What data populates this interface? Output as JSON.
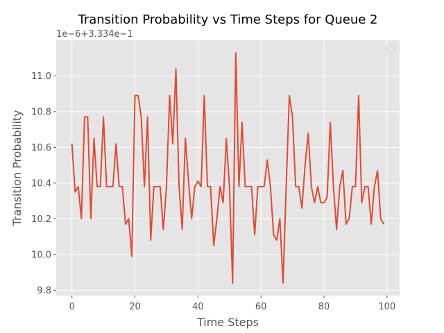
{
  "chart_data": {
    "type": "line",
    "title": "Transition Probability vs Time Steps for Queue 2",
    "xlabel": "Time Steps",
    "ylabel": "Transition Probability",
    "y_offset_text": "1e−6+3.334e−1",
    "xlim": [
      -5,
      104
    ],
    "ylim": [
      9.77,
      11.2
    ],
    "x_ticks": [
      0,
      20,
      40,
      60,
      80,
      100
    ],
    "x_tick_labels": [
      "0",
      "20",
      "40",
      "60",
      "80",
      "100"
    ],
    "y_ticks": [
      9.8,
      10.0,
      10.2,
      10.4,
      10.6,
      10.8,
      11.0
    ],
    "y_tick_labels": [
      "9.8",
      "10.0",
      "10.2",
      "10.4",
      "10.6",
      "10.8",
      "11.0"
    ],
    "grid": true,
    "legend": "top-right (empty)",
    "series": [
      {
        "color": "#e24a33",
        "x": [
          0,
          1,
          2,
          3,
          4,
          5,
          6,
          7,
          8,
          9,
          10,
          11,
          12,
          13,
          14,
          15,
          16,
          17,
          18,
          19,
          20,
          21,
          22,
          23,
          24,
          25,
          26,
          27,
          28,
          29,
          30,
          31,
          32,
          33,
          34,
          35,
          36,
          37,
          38,
          39,
          40,
          41,
          42,
          43,
          44,
          45,
          46,
          47,
          48,
          49,
          50,
          51,
          52,
          53,
          54,
          55,
          56,
          57,
          58,
          59,
          60,
          61,
          62,
          63,
          64,
          65,
          66,
          67,
          68,
          69,
          70,
          71,
          72,
          73,
          74,
          75,
          76,
          77,
          78,
          79,
          80,
          81,
          82,
          83,
          84,
          85,
          86,
          87,
          88,
          89,
          90,
          91,
          92,
          93,
          94,
          95,
          96,
          97,
          98,
          99
        ],
        "values": [
          10.62,
          10.35,
          10.38,
          10.2,
          10.77,
          10.77,
          10.2,
          10.65,
          10.38,
          10.38,
          10.77,
          10.38,
          10.38,
          10.38,
          10.62,
          10.38,
          10.38,
          10.17,
          10.2,
          9.99,
          10.89,
          10.89,
          10.77,
          10.38,
          10.77,
          10.08,
          10.38,
          10.38,
          10.38,
          10.14,
          10.38,
          10.89,
          10.62,
          11.04,
          10.38,
          10.14,
          10.65,
          10.41,
          10.2,
          10.38,
          10.41,
          10.38,
          10.89,
          10.38,
          10.38,
          10.05,
          10.2,
          10.38,
          10.29,
          10.65,
          10.38,
          9.84,
          11.13,
          10.38,
          10.74,
          10.38,
          10.38,
          10.38,
          10.11,
          10.38,
          10.38,
          10.38,
          10.53,
          10.38,
          10.11,
          10.08,
          10.2,
          9.84,
          10.38,
          10.89,
          10.77,
          10.38,
          10.38,
          10.26,
          10.5,
          10.68,
          10.38,
          10.29,
          10.38,
          10.29,
          10.29,
          10.32,
          10.74,
          10.38,
          10.14,
          10.38,
          10.47,
          10.17,
          10.2,
          10.38,
          10.38,
          10.89,
          10.29,
          10.38,
          10.38,
          10.17,
          10.38,
          10.47,
          10.2,
          10.17
        ]
      }
    ]
  }
}
